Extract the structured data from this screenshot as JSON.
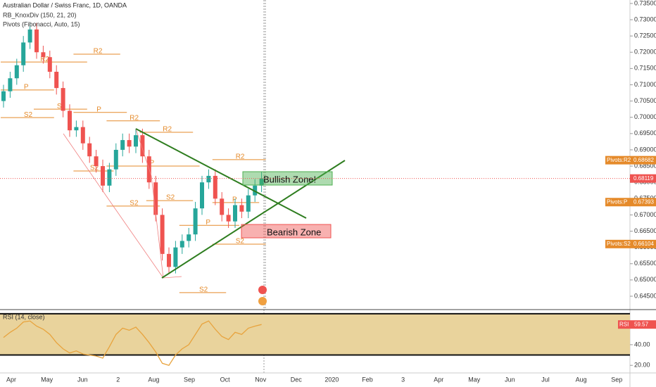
{
  "chart_data": {
    "type": "candlestick",
    "title": "Australian Dollar / Swiss Franc, 1D, OANDA",
    "indicators": [
      "RB_KnoxDiv (150, 21, 20)",
      "Pivots (Fibonacci, Auto, 15)"
    ],
    "x_labels": [
      "Apr",
      "May",
      "Jun",
      "2",
      "Aug",
      "Sep",
      "Oct",
      "Nov",
      "Dec",
      "2020",
      "Feb",
      "3",
      "Apr",
      "May",
      "Jun",
      "Jul",
      "Aug",
      "Sep"
    ],
    "up_color": "#26a69a",
    "down_color": "#ef5350",
    "open": [
      0.705,
      0.708,
      0.712,
      0.716,
      0.723,
      0.727,
      0.72,
      0.7185,
      0.714,
      0.709,
      0.702,
      0.696,
      0.697,
      0.692,
      0.688,
      0.685,
      0.679,
      0.684,
      0.69,
      0.693,
      0.691,
      0.6945,
      0.688,
      0.68,
      0.67,
      0.658,
      0.654,
      0.66,
      0.662,
      0.664,
      0.672,
      0.68,
      0.682,
      0.675,
      0.67,
      0.668,
      0.673,
      0.671,
      0.676,
      0.679
    ],
    "high": [
      0.71,
      0.714,
      0.718,
      0.725,
      0.729,
      0.729,
      0.722,
      0.7205,
      0.716,
      0.711,
      0.704,
      0.699,
      0.699,
      0.694,
      0.69,
      0.687,
      0.686,
      0.692,
      0.695,
      0.695,
      0.6965,
      0.6965,
      0.69,
      0.682,
      0.672,
      0.66,
      0.662,
      0.664,
      0.666,
      0.674,
      0.682,
      0.684,
      0.684,
      0.677,
      0.672,
      0.675,
      0.675,
      0.678,
      0.681,
      0.6832
    ],
    "low": [
      0.703,
      0.706,
      0.71,
      0.714,
      0.721,
      0.718,
      0.7165,
      0.712,
      0.707,
      0.7,
      0.694,
      0.694,
      0.69,
      0.686,
      0.683,
      0.677,
      0.677,
      0.682,
      0.688,
      0.689,
      0.689,
      0.686,
      0.678,
      0.668,
      0.656,
      0.652,
      0.652,
      0.658,
      0.66,
      0.662,
      0.67,
      0.678,
      0.673,
      0.668,
      0.666,
      0.666,
      0.669,
      0.669,
      0.674,
      0.677
    ],
    "close": [
      0.708,
      0.712,
      0.716,
      0.723,
      0.727,
      0.72,
      0.7185,
      0.714,
      0.709,
      0.702,
      0.696,
      0.697,
      0.692,
      0.688,
      0.685,
      0.679,
      0.684,
      0.69,
      0.693,
      0.691,
      0.6945,
      0.688,
      0.68,
      0.67,
      0.658,
      0.654,
      0.66,
      0.662,
      0.664,
      0.672,
      0.68,
      0.682,
      0.675,
      0.67,
      0.668,
      0.673,
      0.671,
      0.676,
      0.679,
      0.68119
    ],
    "ylim": [
      0.64132,
      0.73606
    ],
    "yticks": [
      {
        "value": 0.645,
        "label": "0.64500"
      },
      {
        "value": 0.65,
        "label": "0.65000"
      },
      {
        "value": 0.655,
        "label": "0.65500"
      },
      {
        "value": 0.66,
        "label": "0.66000"
      },
      {
        "value": 0.665,
        "label": "0.66500"
      },
      {
        "value": 0.67,
        "label": "0.67000"
      },
      {
        "value": 0.675,
        "label": "0.67500"
      },
      {
        "value": 0.68,
        "label": "0.68000"
      },
      {
        "value": 0.685,
        "label": "0.68500"
      },
      {
        "value": 0.69,
        "label": "0.69000"
      },
      {
        "value": 0.695,
        "label": "0.69500"
      },
      {
        "value": 0.7,
        "label": "0.70000"
      },
      {
        "value": 0.705,
        "label": "0.70500"
      },
      {
        "value": 0.71,
        "label": "0.71000"
      },
      {
        "value": 0.715,
        "label": "0.71500"
      },
      {
        "value": 0.72,
        "label": "0.72000"
      },
      {
        "value": 0.725,
        "label": "0.72500"
      },
      {
        "value": 0.73,
        "label": "0.73000"
      },
      {
        "value": 0.735,
        "label": "0.73500"
      }
    ],
    "pivot_color": "#e58a2a",
    "pivots": [
      {
        "label": "R2",
        "value": 0.717,
        "from": 0,
        "to": 12
      },
      {
        "label": "R2",
        "value": 0.7194,
        "from": 11,
        "to": 17
      },
      {
        "label": "P",
        "value": 0.7084,
        "from": 0,
        "to": 7
      },
      {
        "label": "S2",
        "value": 0.7025,
        "from": 5,
        "to": 12
      },
      {
        "label": "S2",
        "value": 0.6999,
        "from": 0,
        "to": 7
      },
      {
        "label": "P",
        "value": 0.7015,
        "from": 11,
        "to": 18
      },
      {
        "label": "R2",
        "value": 0.6989,
        "from": 16,
        "to": 23
      },
      {
        "label": "R2",
        "value": 0.6954,
        "from": 21,
        "to": 28
      },
      {
        "label": "P",
        "value": 0.685,
        "from": 16,
        "to": 29
      },
      {
        "label": "S2",
        "value": 0.6835,
        "from": 11,
        "to": 16
      },
      {
        "label": "R2",
        "value": 0.687,
        "from": 32,
        "to": 39
      },
      {
        "label": "S2",
        "value": 0.6727,
        "from": 16,
        "to": 23
      },
      {
        "label": "S2",
        "value": 0.6744,
        "from": 22,
        "to": 28
      },
      {
        "label": "P",
        "value": 0.6738,
        "from": 32,
        "to": 38
      },
      {
        "label": "P",
        "value": 0.6668,
        "from": 27,
        "to": 35
      },
      {
        "label": "S2",
        "value": 0.661,
        "from": 32,
        "to": 39
      },
      {
        "label": "S2",
        "value": 0.6461,
        "from": 27,
        "to": 33
      }
    ],
    "zones": [
      {
        "label": "Bullish Zone!"
      },
      {
        "label": "Bearish Zone"
      }
    ],
    "axis_tags": [
      {
        "name": "Pivots:R2",
        "value": 0.68682
      },
      {
        "name": "Pivots:P",
        "value": 0.67393
      },
      {
        "name": "Pivots:S2",
        "value": 0.66104
      }
    ],
    "last_price": 0.68119,
    "rsi": {
      "title": "RSI (14, close)",
      "name": "RSI",
      "color": "#e8a33d",
      "values": [
        47,
        52,
        56,
        62,
        63,
        58,
        55,
        50,
        42,
        36,
        32,
        34,
        31,
        30,
        29,
        27,
        38,
        50,
        56,
        54,
        57,
        50,
        42,
        33,
        22,
        20,
        30,
        36,
        40,
        50,
        60,
        63,
        55,
        48,
        45,
        52,
        50,
        56,
        58,
        59.57
      ],
      "last": 59.57,
      "ylim": [
        13.33,
        73.33
      ],
      "bands": [
        70,
        30
      ],
      "yticks": [
        {
          "value": 20,
          "label": "20.00"
        },
        {
          "value": 40,
          "label": "40.00"
        }
      ]
    }
  }
}
